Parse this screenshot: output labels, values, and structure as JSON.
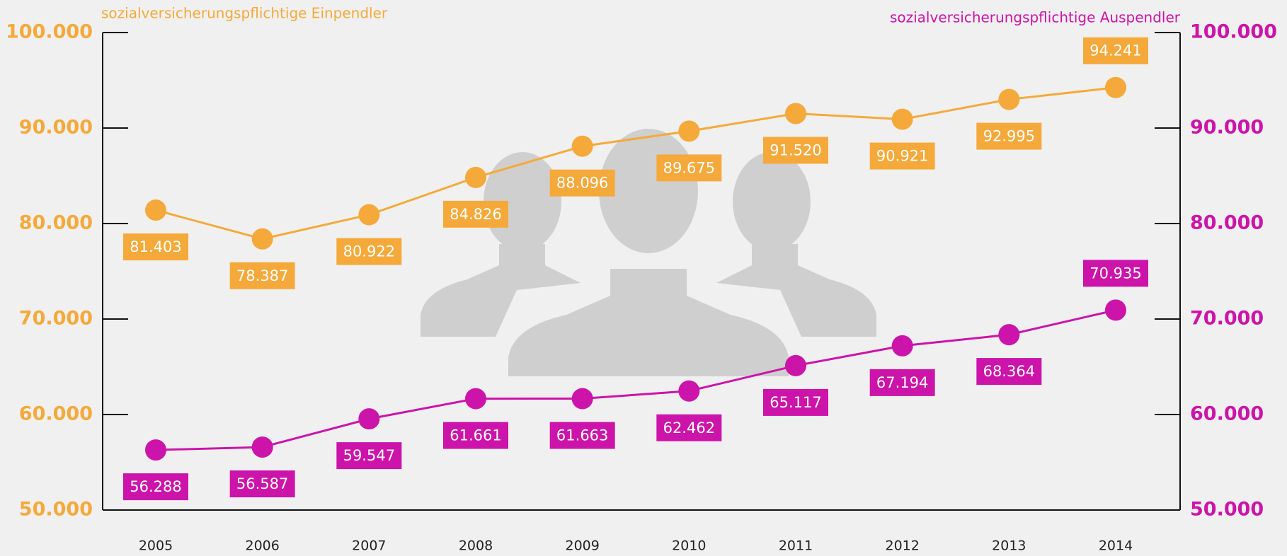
{
  "chart_data": {
    "type": "line",
    "categories": [
      "2005",
      "2006",
      "2007",
      "2008",
      "2009",
      "2010",
      "2011",
      "2012",
      "2013",
      "2014"
    ],
    "series": [
      {
        "name": "sozialversicherungspflichtige Einpendler",
        "color": "#f5a93a",
        "axis": "y",
        "values": [
          81403,
          78387,
          80922,
          84826,
          88096,
          89675,
          91520,
          90921,
          92995,
          94241
        ],
        "value_labels": [
          "81.403",
          "78.387",
          "80.922",
          "84.826",
          "88.096",
          "89.675",
          "91.520",
          "90.921",
          "92.995",
          "94.241"
        ]
      },
      {
        "name": "sozialversicherungspflichtige Auspendler",
        "color": "#cc14aa",
        "axis": "y2",
        "values": [
          56288,
          56587,
          59547,
          61661,
          61663,
          62462,
          65117,
          67194,
          68364,
          70935
        ],
        "value_labels": [
          "56.288",
          "56.587",
          "59.547",
          "61.661",
          "61.663",
          "62.462",
          "65.117",
          "67.194",
          "68.364",
          "70.935"
        ]
      }
    ],
    "ylim": [
      50000,
      100000
    ],
    "yticks": [
      {
        "value": 50000,
        "label": "50.000"
      },
      {
        "value": 60000,
        "label": "60.000"
      },
      {
        "value": 70000,
        "label": "70.000"
      },
      {
        "value": 80000,
        "label": "80.000"
      },
      {
        "value": 90000,
        "label": "90.000"
      },
      {
        "value": 100000,
        "label": "100.000"
      }
    ],
    "y2lim": [
      50000,
      100000
    ],
    "y2ticks": [
      {
        "value": 50000,
        "label": "50.000"
      },
      {
        "value": 60000,
        "label": "60.000"
      },
      {
        "value": 70000,
        "label": "70.000"
      },
      {
        "value": 80000,
        "label": "80.000"
      },
      {
        "value": 90000,
        "label": "90.000"
      },
      {
        "value": 100000,
        "label": "100.000"
      }
    ]
  }
}
